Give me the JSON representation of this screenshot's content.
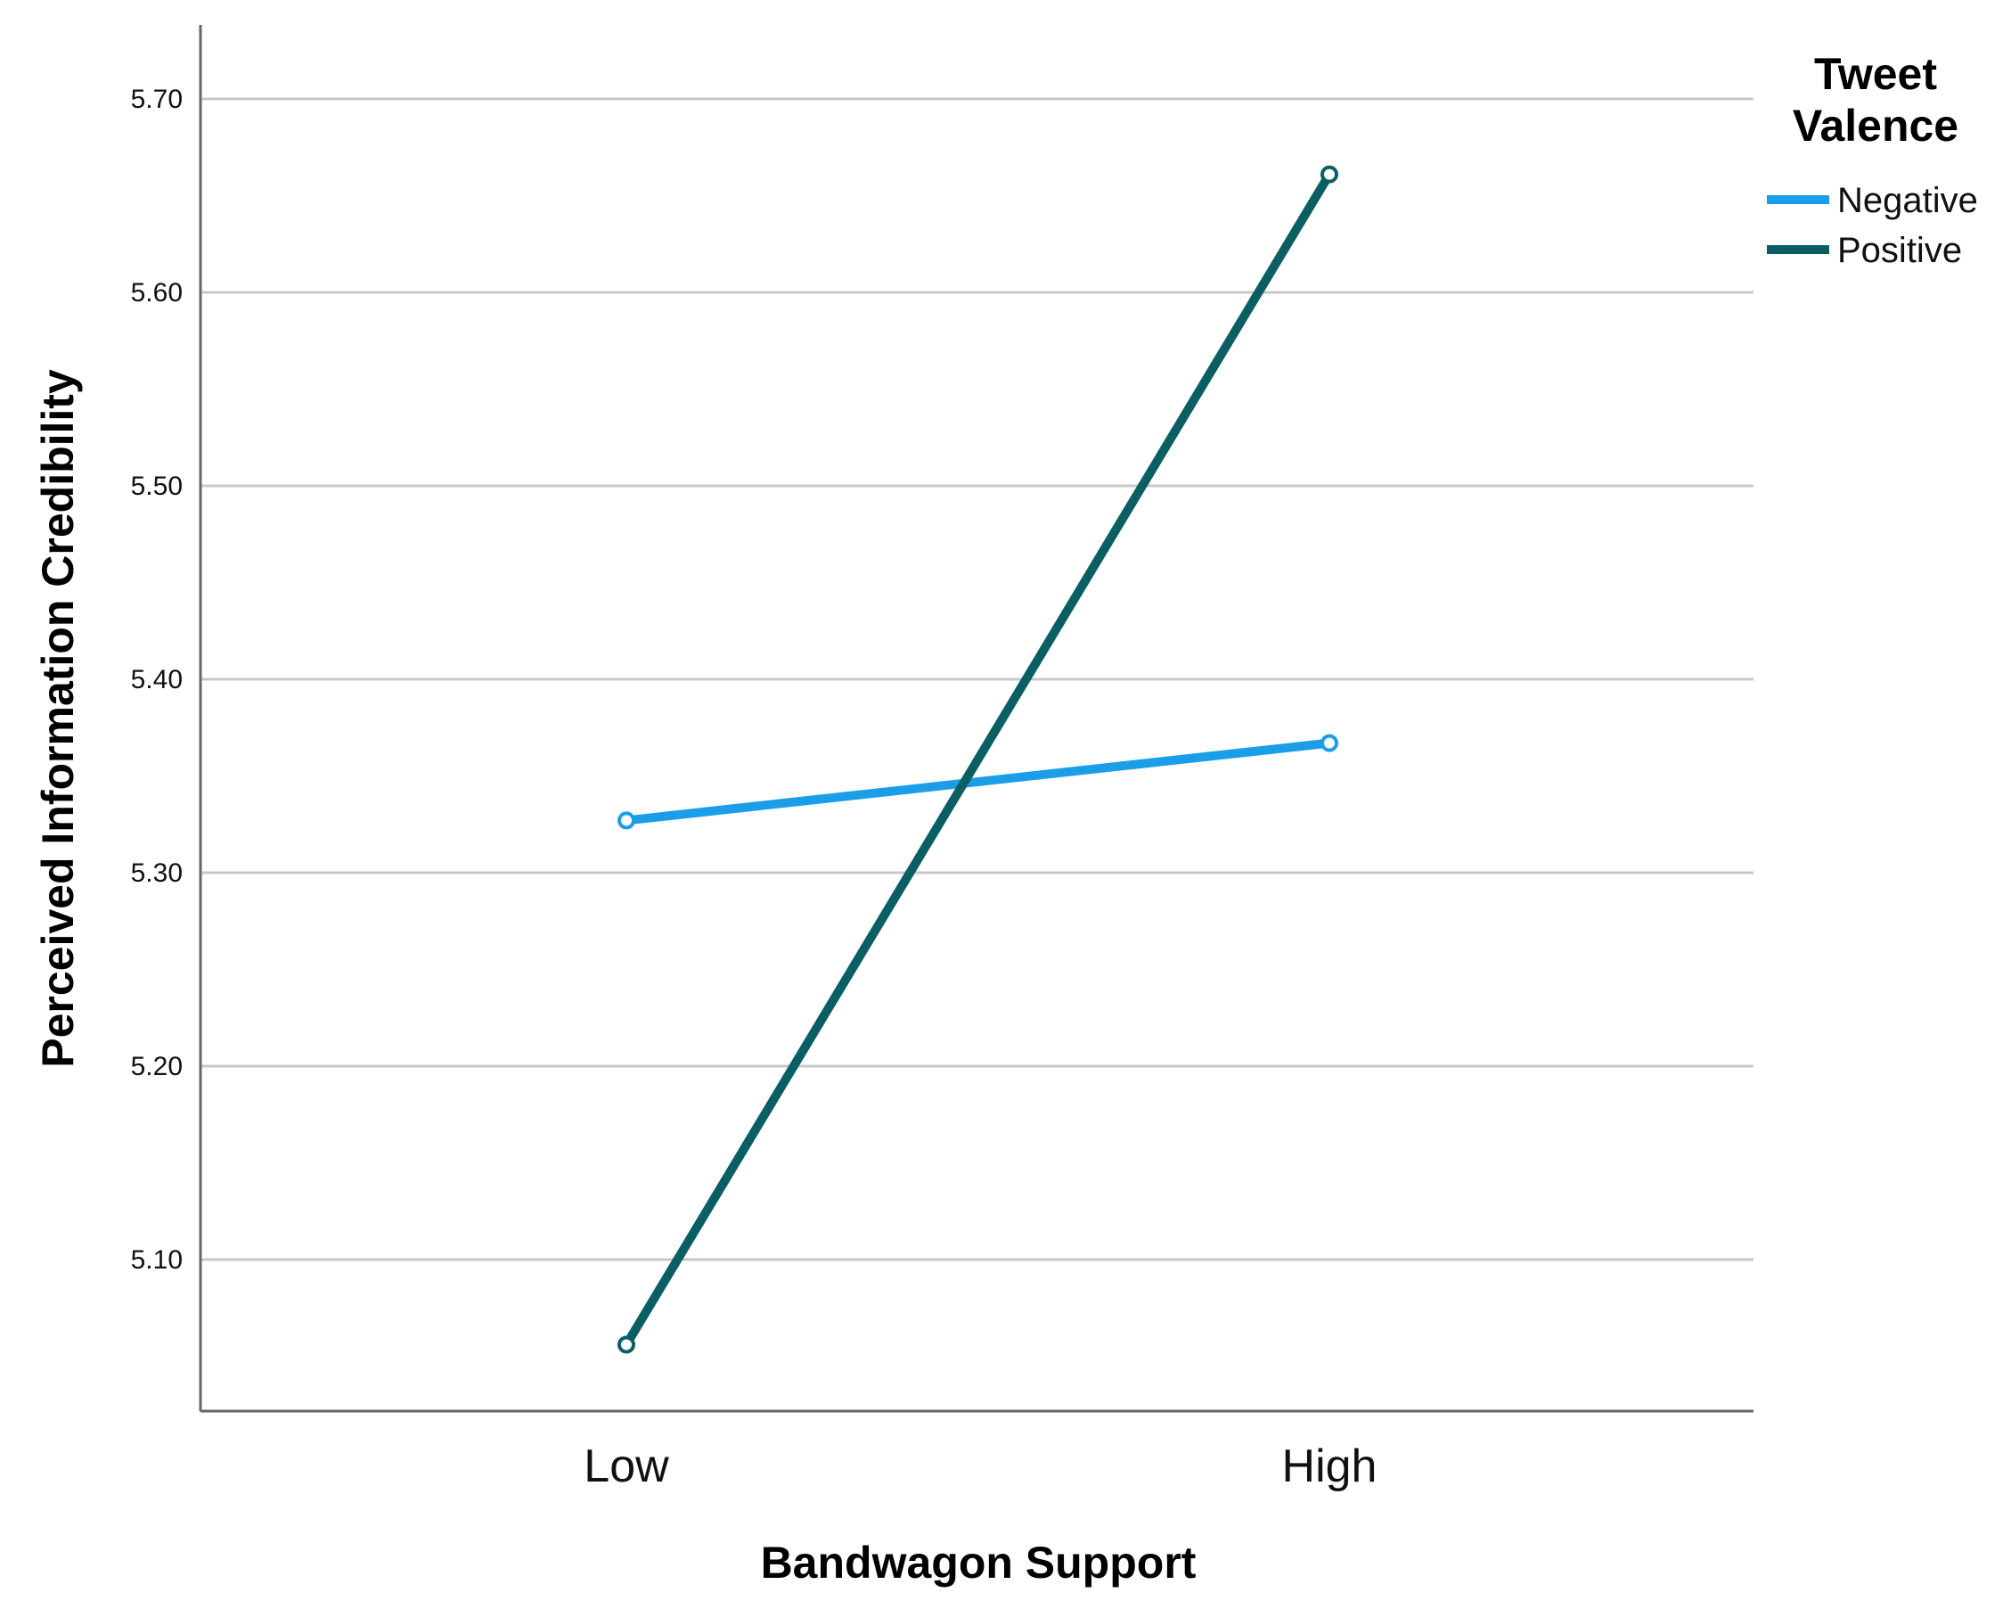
{
  "chart_data": {
    "type": "line",
    "categories": [
      "Low",
      "High"
    ],
    "xlabel": "Bandwagon Support",
    "ylabel": "Perceived Information Credibility",
    "ylim": [
      5.05,
      5.72
    ],
    "yticks": [
      "5.10",
      "5.20",
      "5.30",
      "5.40",
      "5.50",
      "5.60",
      "5.70"
    ],
    "grid": true,
    "legend": {
      "title_lines": [
        "Tweet",
        "Valence"
      ],
      "position": "top-right"
    },
    "series": [
      {
        "name": "Negative",
        "values": [
          5.327,
          5.367
        ],
        "color": "#1a9ee8"
      },
      {
        "name": "Positive",
        "values": [
          5.056,
          5.661
        ],
        "color": "#0b5f63"
      }
    ]
  }
}
